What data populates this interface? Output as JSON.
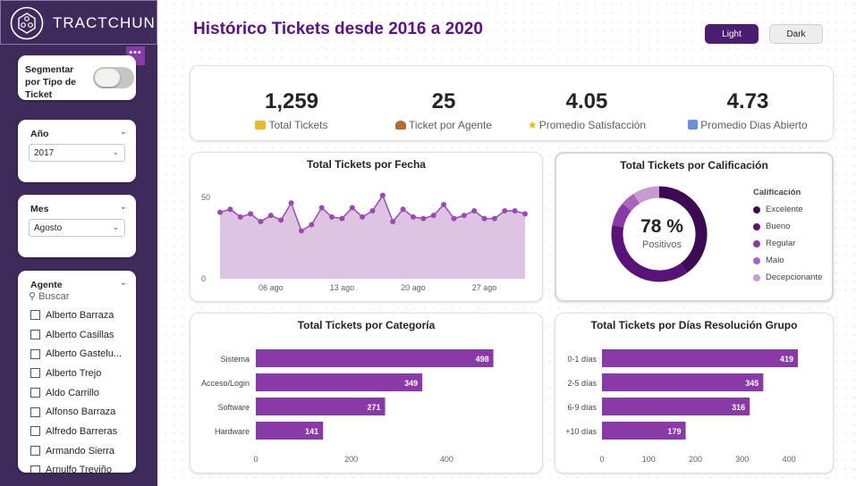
{
  "brand": {
    "name": "TRACTCHUN"
  },
  "sidebar": {
    "toggle": {
      "label": "Segmentar por Tipo de Ticket"
    },
    "more_label": "•••",
    "year": {
      "title": "Año",
      "value": "2017"
    },
    "month": {
      "title": "Mes",
      "value": "Agosto"
    },
    "agent": {
      "title": "Agente",
      "search_placeholder": "Buscar",
      "items": [
        "Alberto Barraza",
        "Alberto Casillas",
        "Alberto Gastelu...",
        "Alberto Trejo",
        "Aldo Carrillo",
        "Alfonso Barraza",
        "Alfredo Barreras",
        "Armando Sierra",
        "Arnulfo Treviño"
      ]
    }
  },
  "header": {
    "title": "Histórico Tickets desde 2016 a 2020",
    "light_label": "Light",
    "dark_label": "Dark"
  },
  "kpis": [
    {
      "value": "1,259",
      "label": "Total Tickets",
      "icon": "ticket-icon"
    },
    {
      "value": "25",
      "label": "Ticket por Agente",
      "icon": "agent-icon"
    },
    {
      "value": "4.05",
      "label": "Promedio Satisfacción",
      "icon": "star-icon"
    },
    {
      "value": "4.73",
      "label": "Promedio Dias Abierto",
      "icon": "calendar-icon"
    }
  ],
  "colors": {
    "accent": "#8a3aa6",
    "area_fill": "#dcc4e2",
    "line": "#9b4ab5",
    "excelente": "#3b0a52",
    "bueno": "#5a1178",
    "regular": "#8a3aa6",
    "malo": "#a865bd",
    "decepcionante": "#c69bd3"
  },
  "chart_data": [
    {
      "type": "area",
      "title": "Total Tickets por Fecha",
      "y_tick_labels": [
        "0",
        "50"
      ],
      "x_tick_labels": [
        "06 ago",
        "13 ago",
        "20 ago",
        "27 ago"
      ],
      "ylim": [
        0,
        70
      ],
      "x": [
        1,
        2,
        3,
        4,
        5,
        6,
        7,
        8,
        9,
        10,
        11,
        12,
        13,
        14,
        15,
        16,
        17,
        18,
        19,
        20,
        21,
        22,
        23,
        24,
        25,
        26,
        27,
        28,
        29,
        30,
        31
      ],
      "values": [
        43,
        45,
        40,
        42,
        37,
        41,
        38,
        49,
        31,
        35,
        46,
        40,
        39,
        46,
        40,
        44,
        54,
        37,
        45,
        40,
        39,
        41,
        48,
        39,
        41,
        44,
        39,
        39,
        44,
        44,
        42
      ]
    },
    {
      "type": "pie",
      "title": "Total Tickets por Calificación",
      "center_value": "78 %",
      "center_label": "Positivos",
      "legend_title": "Calificación",
      "categories": [
        "Excelente",
        "Bueno",
        "Regular",
        "Malo",
        "Decepcionante"
      ],
      "values": [
        40,
        38,
        8,
        5,
        9
      ]
    },
    {
      "type": "bar",
      "orientation": "horizontal",
      "title": "Total Tickets por Categoría",
      "categories": [
        "Sistema",
        "Acceso/Login",
        "Software",
        "Hardware"
      ],
      "values": [
        498,
        349,
        271,
        141
      ],
      "x_tick_labels": [
        "0",
        "200",
        "400"
      ],
      "xlim": [
        0,
        540
      ]
    },
    {
      "type": "bar",
      "orientation": "horizontal",
      "title": "Total Tickets por Días Resolución Grupo",
      "categories": [
        "0-1 días",
        "2-5 días",
        "6-9 días",
        "+10 días"
      ],
      "values": [
        419,
        345,
        316,
        179
      ],
      "x_tick_labels": [
        "0",
        "100",
        "200",
        "300",
        "400"
      ],
      "xlim": [
        0,
        440
      ]
    }
  ]
}
